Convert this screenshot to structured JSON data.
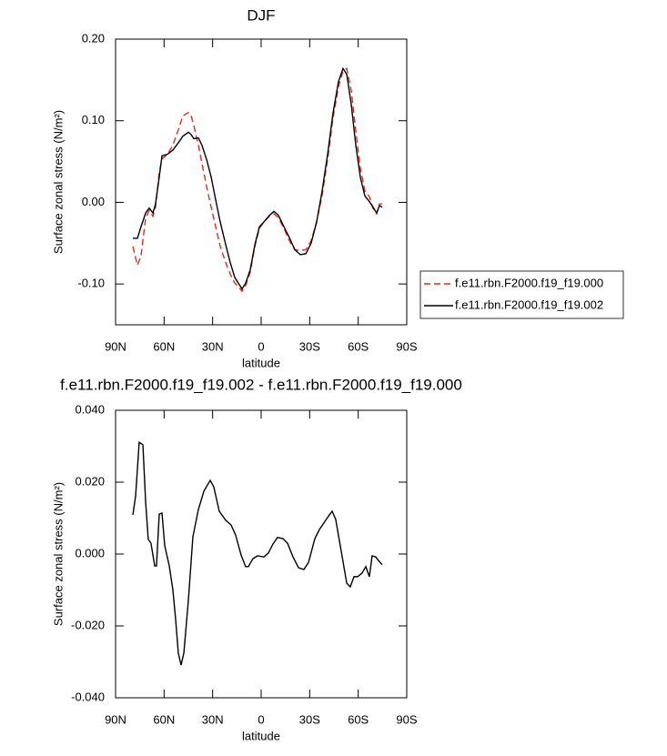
{
  "chart_data": [
    {
      "type": "line",
      "title": "DJF",
      "x_label": "latitude",
      "y_label": "Surface zonal stress (N/m²)",
      "xlim": [
        90,
        -90
      ],
      "xticks": [
        {
          "value": 90,
          "label": "90N"
        },
        {
          "value": 60,
          "label": "60N"
        },
        {
          "value": 30,
          "label": "30N"
        },
        0,
        {
          "value": -30,
          "label": "30S"
        },
        {
          "value": -60,
          "label": "60S"
        },
        {
          "value": -90,
          "label": "90S"
        }
      ],
      "ylim": [
        -0.15,
        0.2
      ],
      "yticks": [
        {
          "value": 0.2,
          "label": "0.20"
        },
        {
          "value": 0.1,
          "label": "0.10"
        },
        {
          "value": 0,
          "label": "0.00"
        },
        {
          "value": -0.1,
          "label": "-0.10"
        }
      ],
      "legend": "right",
      "x": [
        79.3,
        76.5,
        74.3,
        71.4,
        69.2,
        66.9,
        65.3,
        63.0,
        61.3,
        57.9,
        54.6,
        51.2,
        48.4,
        45.0,
        43.3,
        41.6,
        38.8,
        36.6,
        33.8,
        30.9,
        28.1,
        25.3,
        21.9,
        19.1,
        16.3,
        14.1,
        11.8,
        9.6,
        6.8,
        3.9,
        1.1,
        -1.7,
        -5.1,
        -7.9,
        -10.7,
        -14.1,
        -17.4,
        -20.8,
        -24.2,
        -27.6,
        -30.9,
        -34.3,
        -37.7,
        -41.1,
        -44.4,
        -47.8,
        -50.6,
        -52.9,
        -55.7,
        -58.5,
        -61.3,
        -64.1,
        -66.9,
        -69.2,
        -71.4,
        -73.1,
        -74.8
      ],
      "series": [
        {
          "name": "f.e11.rbn.F2000.f19_f19.000",
          "color": "#e8281e",
          "line_style": "dashed",
          "values": [
            -0.054,
            -0.077,
            -0.066,
            -0.019,
            -0.01,
            -0.017,
            -0.006,
            0.037,
            0.053,
            0.059,
            0.07,
            0.089,
            0.106,
            0.11,
            0.106,
            0.094,
            0.07,
            0.048,
            0.02,
            -0.006,
            -0.03,
            -0.054,
            -0.074,
            -0.088,
            -0.099,
            -0.103,
            -0.109,
            -0.102,
            -0.086,
            -0.054,
            -0.032,
            -0.024,
            -0.017,
            -0.014,
            -0.019,
            -0.032,
            -0.047,
            -0.058,
            -0.059,
            -0.058,
            -0.047,
            -0.024,
            0.009,
            0.053,
            0.103,
            0.142,
            0.161,
            0.164,
            0.137,
            0.087,
            0.042,
            0.014,
            0.007,
            -0.008,
            -0.014,
            -0.002,
            -0.002
          ]
        },
        {
          "name": "f.e11.rbn.F2000.f19_f19.002",
          "color": "#000000",
          "line_style": "solid",
          "values": [
            -0.044,
            -0.044,
            -0.03,
            -0.013,
            -0.007,
            -0.013,
            -0.002,
            0.031,
            0.057,
            0.059,
            0.064,
            0.073,
            0.081,
            0.086,
            0.083,
            0.078,
            0.079,
            0.07,
            0.053,
            0.031,
            0.003,
            -0.024,
            -0.052,
            -0.074,
            -0.092,
            -0.099,
            -0.106,
            -0.099,
            -0.083,
            -0.052,
            -0.03,
            -0.024,
            -0.016,
            -0.011,
            -0.016,
            -0.03,
            -0.043,
            -0.058,
            -0.064,
            -0.063,
            -0.05,
            -0.024,
            0.014,
            0.059,
            0.109,
            0.148,
            0.164,
            0.157,
            0.12,
            0.07,
            0.031,
            0.008,
            0.001,
            -0.006,
            -0.013,
            -0.004,
            -0.006
          ]
        }
      ]
    },
    {
      "type": "line",
      "title": "f.e11.rbn.F2000.f19_f19.002 - f.e11.rbn.F2000.f19_f19.000",
      "x_label": "latitude",
      "y_label": "Surface zonal stress (N/m²)",
      "xlim": [
        90,
        -90
      ],
      "xticks": [
        {
          "value": 90,
          "label": "90N"
        },
        {
          "value": 60,
          "label": "60N"
        },
        {
          "value": 30,
          "label": "30N"
        },
        0,
        {
          "value": -30,
          "label": "30S"
        },
        {
          "value": -60,
          "label": "60S"
        },
        {
          "value": -90,
          "label": "90S"
        }
      ],
      "ylim": [
        -0.04,
        0.04
      ],
      "yticks": [
        {
          "value": 0.04,
          "label": "0.040"
        },
        {
          "value": 0.02,
          "label": "0.020"
        },
        {
          "value": 0,
          "label": "0.000"
        },
        {
          "value": -0.02,
          "label": "-0.020"
        },
        {
          "value": -0.04,
          "label": "-0.040"
        }
      ],
      "x": [
        79.3,
        77.6,
        75.4,
        73.1,
        71.4,
        69.8,
        68.1,
        65.8,
        64.7,
        63.0,
        61.3,
        59.6,
        56.8,
        54.6,
        52.9,
        51.2,
        49.5,
        47.8,
        45.0,
        42.2,
        38.8,
        35.4,
        31.5,
        29.3,
        25.9,
        21.9,
        18.6,
        15.8,
        12.4,
        9.6,
        7.9,
        5.1,
        2.3,
        -1.7,
        -4.5,
        -7.3,
        -10.1,
        -13.5,
        -16.3,
        -19.7,
        -23.1,
        -26.4,
        -29.3,
        -33.2,
        -36.0,
        -39.9,
        -42.2,
        -43.9,
        -46.1,
        -49.5,
        -52.9,
        -55.1,
        -57.4,
        -59.6,
        -62.4,
        -64.7,
        -66.9,
        -68.6,
        -70.8,
        -72.5,
        -74.8
      ],
      "color": "#000000",
      "values": [
        0.0109,
        0.0162,
        0.0311,
        0.0304,
        0.0144,
        0.0041,
        0.003,
        -0.0033,
        -0.0033,
        0.0111,
        0.0114,
        0.0023,
        -0.0033,
        -0.0099,
        -0.018,
        -0.0276,
        -0.0309,
        -0.0276,
        -0.0129,
        0.0048,
        0.0124,
        0.0175,
        0.0205,
        0.0187,
        0.0119,
        0.0094,
        0.0081,
        0.0053,
        -0.0003,
        -0.0035,
        -0.0035,
        -0.0013,
        -0.0005,
        -0.0008,
        0.0003,
        0.0028,
        0.0046,
        0.0043,
        0.003,
        -0.0008,
        -0.0038,
        -0.0043,
        -0.0023,
        0.0043,
        0.0068,
        0.0094,
        0.0109,
        0.0119,
        0.0096,
        0.0008,
        -0.0081,
        -0.0091,
        -0.0063,
        -0.0063,
        -0.0053,
        -0.0035,
        -0.0063,
        -0.0005,
        -0.0008,
        -0.0018,
        -0.003
      ]
    }
  ]
}
